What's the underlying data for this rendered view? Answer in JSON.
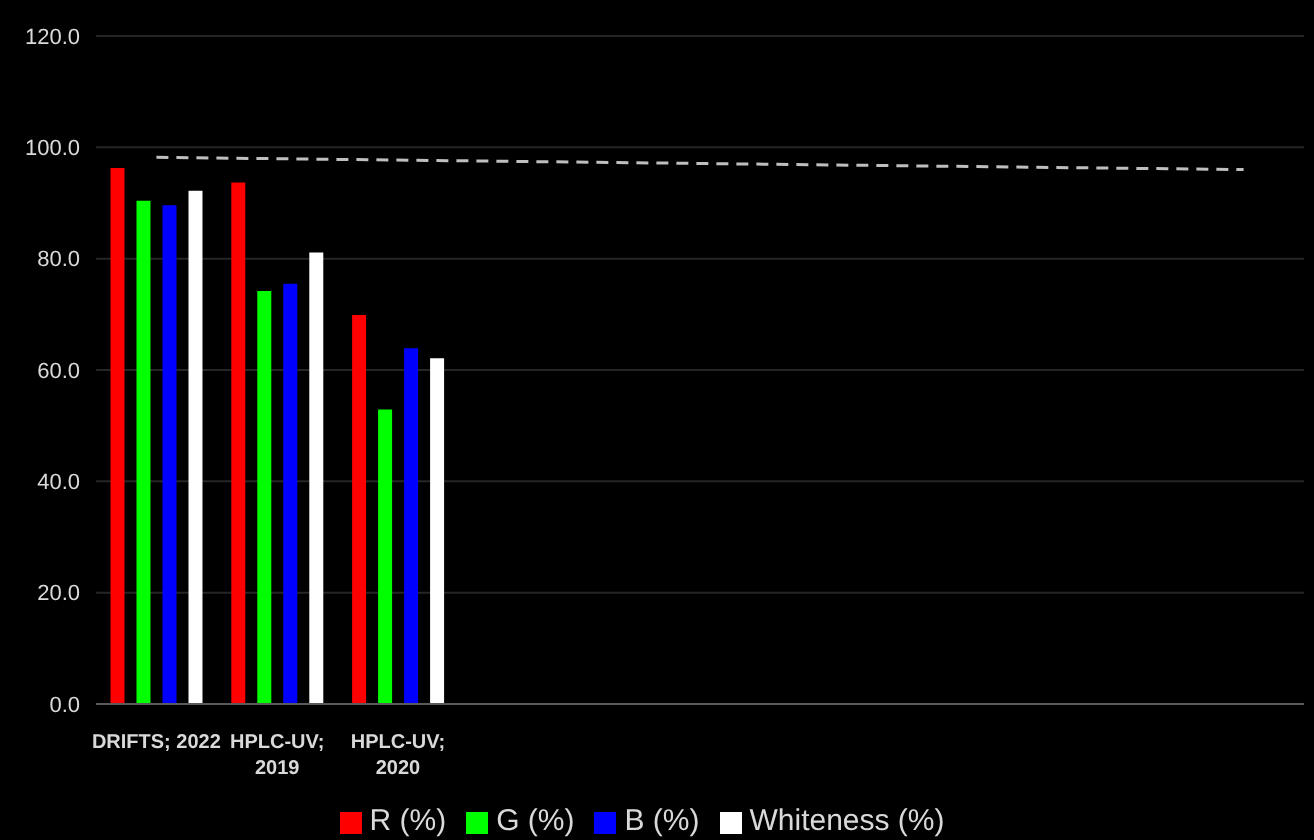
{
  "chart_data": {
    "type": "bar",
    "categories": [
      "DRIFTS; 2022",
      "HPLC-UV; 2019",
      "HPLC-UV; 2020",
      null,
      null,
      null,
      null,
      null,
      null,
      null
    ],
    "series": [
      {
        "name": "R (%)",
        "color": "#ff0000",
        "values": [
          96.3,
          93.7,
          69.9,
          null,
          null,
          null,
          null,
          null,
          null,
          null
        ]
      },
      {
        "name": "G (%)",
        "color": "#00ff00",
        "values": [
          90.4,
          74.2,
          52.9,
          null,
          null,
          null,
          null,
          null,
          null,
          null
        ]
      },
      {
        "name": "B (%)",
        "color": "#0000ff",
        "values": [
          89.6,
          75.5,
          63.9,
          null,
          null,
          null,
          null,
          null,
          null,
          null
        ]
      },
      {
        "name": "Whiteness (%)",
        "color": "#ffffff",
        "values": [
          92.2,
          81.1,
          62.1,
          null,
          null,
          null,
          null,
          null,
          null,
          null
        ]
      },
      {
        "type": "line",
        "color": "#bfbfbf",
        "line_style": "dashed",
        "marker": "none",
        "values": [
          98.2,
          null,
          null,
          null,
          null,
          null,
          null,
          null,
          null,
          96.0
        ]
      }
    ],
    "ylim": [
      0,
      120
    ],
    "yticks": [
      {
        "value": 0,
        "label": "0.0"
      },
      {
        "value": 20,
        "label": "20.0"
      },
      {
        "value": 40,
        "label": "40.0"
      },
      {
        "value": 60,
        "label": "60.0"
      },
      {
        "value": 80,
        "label": "80.0"
      },
      {
        "value": 100,
        "label": "100.0"
      },
      {
        "value": 120,
        "label": "120.0"
      }
    ],
    "grid": "y",
    "legend": "bottom"
  }
}
